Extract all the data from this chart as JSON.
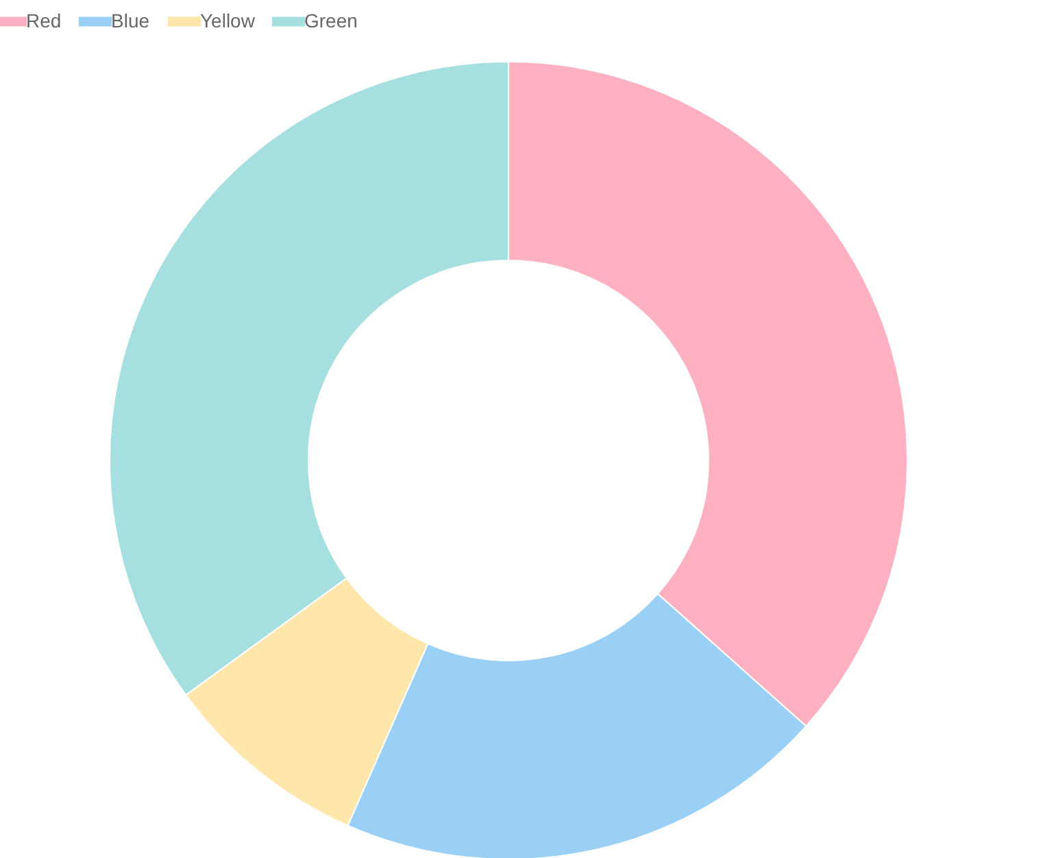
{
  "chart_data": {
    "type": "donut",
    "categories": [
      "Red",
      "Blue",
      "Yellow",
      "Green"
    ],
    "values": [
      36.6,
      20,
      8.4,
      35
    ],
    "colors": [
      "#ffb1c1",
      "#9ad0f5",
      "#ffe6aa",
      "#a5dfdf"
    ],
    "legend": "top"
  }
}
